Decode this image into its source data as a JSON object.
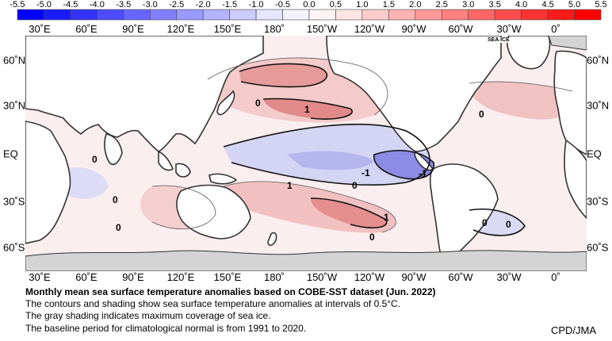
{
  "colorbar": {
    "ticks": [
      "-5.5",
      "-5.0",
      "-4.5",
      "-4.0",
      "-3.5",
      "-3.0",
      "-2.5",
      "-2.0",
      "-1.5",
      "-1.0",
      "-0.5",
      "0.0",
      "0.5",
      "1.0",
      "1.5",
      "2.0",
      "2.5",
      "3.0",
      "3.5",
      "4.0",
      "4.5",
      "5.0",
      "5.5"
    ],
    "colors": [
      "#0000ff",
      "#1a1aff",
      "#3333ff",
      "#4d4dff",
      "#6666ff",
      "#8080ff",
      "#9999ff",
      "#b3b3ff",
      "#ccccff",
      "#e6e6ff",
      "#f3f3ff",
      "#fff3f3",
      "#ffe6e6",
      "#ffcccc",
      "#ffb3b3",
      "#ff9999",
      "#ff8080",
      "#ff6666",
      "#ff4d4d",
      "#ff3333",
      "#ff1a1a",
      "#ff0000"
    ]
  },
  "longitude_labels": [
    "30˚E",
    "60˚E",
    "90˚E",
    "120˚E",
    "150˚E",
    "180˚",
    "150˚W",
    "120˚W",
    "90˚W",
    "60˚W",
    "30˚W",
    "0˚"
  ],
  "latitude_labels": [
    "60˚N",
    "30˚N",
    "EQ",
    "30˚S",
    "60˚S"
  ],
  "map": {
    "sea_ice_label": "SEA ICE",
    "contour_labels": [
      "0",
      "1",
      "0",
      "-1",
      "-1",
      "0",
      "0",
      "1",
      "1",
      "0",
      "0",
      "0",
      "0",
      "0"
    ],
    "colors": {
      "land": "#ffffff",
      "sea_ice": "#d4d4d4",
      "warm": "#f3c4c4",
      "warm_strong": "#e08888",
      "cool": "#d2d2f0",
      "cool_strong": "#7c7ce0"
    }
  },
  "caption": {
    "title": "Monthly mean sea surface temperature anomalies based on COBE-SST dataset (Jun. 2022)",
    "line1": "The contours and shading show sea surface temperature anomalies at intervals of 0.5°C.",
    "line2": "The gray shading indicates maximum coverage of sea ice.",
    "line3": "The baseline period for climatological normal is from 1991 to 2020."
  },
  "credit": "CPD/JMA"
}
